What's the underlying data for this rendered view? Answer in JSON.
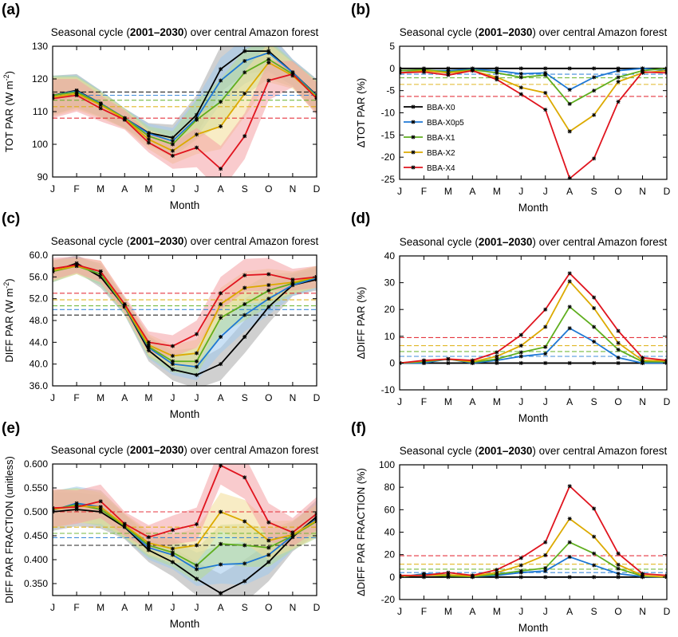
{
  "legend_labels": [
    "BBA-X0",
    "BBA-X0p5",
    "BBA-X1",
    "BBA-X2",
    "BBA-X4"
  ],
  "colors": {
    "BBA-X0": "#000000",
    "BBA-X0p5": "#1f78d4",
    "BBA-X1": "#5fae1e",
    "BBA-X2": "#dcaa00",
    "BBA-X4": "#e0141e"
  },
  "band_colors": {
    "BBA-X0": "#aaaaaa",
    "BBA-X0p5": "#9ec9ec",
    "BBA-X1": "#b6dc96",
    "BBA-X2": "#f3dd96",
    "BBA-X4": "#f4a0a4"
  },
  "chart_data": [
    {
      "id": "a",
      "panel_label": "(a)",
      "type": "line",
      "title_pre": "Seasonal cycle (",
      "title_bold": "2001–2030",
      "title_post": ") over central Amazon forest",
      "xlabel": "Month",
      "ylabel": "TOT PAR (W m^-2)",
      "categories": [
        "J",
        "F",
        "M",
        "A",
        "M",
        "J",
        "J",
        "A",
        "S",
        "O",
        "N",
        "D"
      ],
      "ylim": [
        90,
        130
      ],
      "yticks": [
        "90",
        "100",
        "110",
        "120",
        "130"
      ],
      "series": [
        {
          "name": "BBA-X0",
          "values": [
            115,
            116.5,
            112.5,
            108,
            103.5,
            102,
            109,
            123,
            128.5,
            128.5,
            122,
            115
          ]
        },
        {
          "name": "BBA-X0p5",
          "values": [
            115,
            116.3,
            112.5,
            108,
            103.3,
            101,
            108,
            119.5,
            125.5,
            128,
            122,
            114.8
          ]
        },
        {
          "name": "BBA-X1",
          "values": [
            115,
            116,
            112.3,
            108,
            102.5,
            100,
            107.5,
            113,
            122,
            126,
            121.5,
            114.6
          ]
        },
        {
          "name": "BBA-X2",
          "values": [
            114.5,
            115.5,
            112,
            107.8,
            101.5,
            98,
            103,
            105.5,
            115.5,
            125,
            121,
            114.4
          ]
        },
        {
          "name": "BBA-X4",
          "values": [
            114,
            115,
            111,
            107.5,
            100.5,
            96.5,
            99,
            92.5,
            102.5,
            119.5,
            121.5,
            114
          ]
        }
      ],
      "spread": [
        6,
        5,
        4,
        3,
        3,
        4,
        6,
        7,
        7,
        6,
        4,
        5
      ],
      "hlines": [
        {
          "series": "BBA-X0",
          "value": 116
        },
        {
          "series": "BBA-X0p5",
          "value": 115
        },
        {
          "series": "BBA-X1",
          "value": 113.5
        },
        {
          "series": "BBA-X2",
          "value": 111.5
        },
        {
          "series": "BBA-X4",
          "value": 108
        }
      ]
    },
    {
      "id": "b",
      "panel_label": "(b)",
      "type": "line",
      "title_pre": "Seasonal cycle (",
      "title_bold": "2001–2030",
      "title_post": ") over central Amazon forest",
      "xlabel": "Month",
      "ylabel": "ΔTOT PAR (%)",
      "categories": [
        "J",
        "F",
        "M",
        "A",
        "M",
        "J",
        "J",
        "A",
        "S",
        "O",
        "N",
        "D"
      ],
      "ylim": [
        -25,
        5
      ],
      "yticks": [
        "-25",
        "-20",
        "-15",
        "-10",
        "-5",
        "0",
        "5"
      ],
      "series": [
        {
          "name": "BBA-X0",
          "values": [
            0,
            0,
            0,
            0,
            0,
            0,
            0,
            0,
            0,
            0,
            0,
            0
          ]
        },
        {
          "name": "BBA-X0p5",
          "values": [
            -0.5,
            -0.5,
            -0.5,
            -0.2,
            -0.5,
            -1.2,
            -1,
            -4.8,
            -2,
            -0.5,
            0,
            -0.5
          ]
        },
        {
          "name": "BBA-X1",
          "values": [
            -0.5,
            -0.3,
            -0.8,
            -0.3,
            -1,
            -2,
            -1.5,
            -8,
            -5,
            -2,
            -0.5,
            0
          ]
        },
        {
          "name": "BBA-X2",
          "values": [
            -1,
            -0.5,
            -1,
            -0.5,
            -2,
            -4.3,
            -5.5,
            -14.2,
            -10.5,
            -3,
            -1,
            -0.5
          ]
        },
        {
          "name": "BBA-X4",
          "values": [
            -1,
            -0.8,
            -1.5,
            -0.5,
            -2.5,
            -5.8,
            -9.3,
            -24.8,
            -20.3,
            -7.5,
            -0.8,
            -1
          ]
        }
      ],
      "hlines": [
        {
          "series": "BBA-X0p5",
          "value": -1.3
        },
        {
          "series": "BBA-X1",
          "value": -2.1
        },
        {
          "series": "BBA-X2",
          "value": -3.6
        },
        {
          "series": "BBA-X4",
          "value": -6.3
        }
      ],
      "legend_position": "center-left"
    },
    {
      "id": "c",
      "panel_label": "(c)",
      "type": "line",
      "title_pre": "Seasonal cycle (",
      "title_bold": "2001–2030",
      "title_post": ") over central Amazon forest",
      "xlabel": "Month",
      "ylabel": "DIFF PAR (W m^-2)",
      "categories": [
        "J",
        "F",
        "M",
        "A",
        "M",
        "J",
        "J",
        "A",
        "S",
        "O",
        "N",
        "D"
      ],
      "ylim": [
        36,
        60
      ],
      "yticks": [
        "36.0",
        "40.0",
        "44.0",
        "48.0",
        "52.0",
        "56.0",
        "60.0"
      ],
      "series": [
        {
          "name": "BBA-X0",
          "values": [
            57,
            58.5,
            56,
            50.5,
            42.5,
            39,
            38,
            40,
            45,
            50.5,
            54.5,
            55.5
          ]
        },
        {
          "name": "BBA-X0p5",
          "values": [
            57,
            58.2,
            56.5,
            50.5,
            43,
            40,
            39.5,
            45,
            49,
            52,
            54.5,
            55.8
          ]
        },
        {
          "name": "BBA-X1",
          "values": [
            57,
            58,
            56.5,
            50.6,
            43.2,
            40.5,
            40.5,
            48.5,
            51,
            53.5,
            54.8,
            56
          ]
        },
        {
          "name": "BBA-X2",
          "values": [
            57.2,
            58,
            57,
            50.7,
            43.5,
            41.5,
            42,
            51,
            54,
            54.5,
            55,
            56
          ]
        },
        {
          "name": "BBA-X4",
          "values": [
            57.5,
            58.2,
            57,
            51,
            44,
            43.3,
            45.5,
            53,
            56.3,
            56.5,
            55.5,
            56
          ]
        }
      ],
      "spread": [
        2,
        1.5,
        2,
        1.5,
        2,
        2,
        2.5,
        3,
        3,
        3,
        2,
        2
      ],
      "hlines": [
        {
          "series": "BBA-X0",
          "value": 49
        },
        {
          "series": "BBA-X0p5",
          "value": 50
        },
        {
          "series": "BBA-X1",
          "value": 50.7
        },
        {
          "series": "BBA-X2",
          "value": 51.8
        },
        {
          "series": "BBA-X4",
          "value": 53
        }
      ]
    },
    {
      "id": "d",
      "panel_label": "(d)",
      "type": "line",
      "title_pre": "Seasonal cycle (",
      "title_bold": "2001–2030",
      "title_post": ") over central Amazon forest",
      "xlabel": "Month",
      "ylabel": "ΔDIFF PAR (%)",
      "categories": [
        "J",
        "F",
        "M",
        "A",
        "M",
        "J",
        "J",
        "A",
        "S",
        "O",
        "N",
        "D"
      ],
      "ylim": [
        -10,
        40
      ],
      "yticks": [
        "-10",
        "0",
        "10",
        "20",
        "30",
        "40"
      ],
      "series": [
        {
          "name": "BBA-X0",
          "values": [
            0,
            0,
            0,
            0,
            0,
            0,
            0,
            0,
            0,
            0,
            0,
            0
          ]
        },
        {
          "name": "BBA-X0p5",
          "values": [
            0,
            0,
            1.5,
            0,
            1,
            2.5,
            3.5,
            13,
            8,
            2,
            0,
            0
          ]
        },
        {
          "name": "BBA-X1",
          "values": [
            0,
            0.5,
            1.5,
            0.3,
            1.5,
            4,
            6,
            21,
            13.5,
            5,
            0.5,
            0.5
          ]
        },
        {
          "name": "BBA-X2",
          "values": [
            0,
            0.8,
            1.5,
            0.5,
            2.5,
            6.5,
            13.5,
            30.5,
            20.5,
            7.5,
            1,
            0.8
          ]
        },
        {
          "name": "BBA-X4",
          "values": [
            0,
            1,
            1.5,
            1,
            4,
            10.5,
            20,
            33.5,
            24.5,
            12,
            2,
            1
          ]
        }
      ],
      "hlines": [
        {
          "series": "BBA-X0p5",
          "value": 2.5
        },
        {
          "series": "BBA-X1",
          "value": 4.3
        },
        {
          "series": "BBA-X2",
          "value": 6.5
        },
        {
          "series": "BBA-X4",
          "value": 9.5
        }
      ]
    },
    {
      "id": "e",
      "panel_label": "(e)",
      "type": "line",
      "title_pre": "Seasonal cycle (",
      "title_bold": "2001–2030",
      "title_post": ") over central Amazon forest",
      "xlabel": "Month",
      "ylabel": "DIFF PAR FRACTION (unitless)",
      "categories": [
        "J",
        "F",
        "M",
        "A",
        "M",
        "J",
        "J",
        "A",
        "S",
        "O",
        "N",
        "D"
      ],
      "ylim": [
        0.325,
        0.6
      ],
      "yticks": [
        "0.350",
        "0.400",
        "0.450",
        "0.500",
        "0.550",
        "0.600"
      ],
      "series": [
        {
          "name": "BBA-X0",
          "values": [
            0.5,
            0.505,
            0.5,
            0.468,
            0.42,
            0.395,
            0.36,
            0.33,
            0.355,
            0.395,
            0.447,
            0.49
          ]
        },
        {
          "name": "BBA-X0p5",
          "values": [
            0.503,
            0.518,
            0.51,
            0.47,
            0.425,
            0.41,
            0.38,
            0.39,
            0.392,
            0.41,
            0.45,
            0.485
          ]
        },
        {
          "name": "BBA-X1",
          "values": [
            0.505,
            0.515,
            0.505,
            0.47,
            0.43,
            0.415,
            0.388,
            0.433,
            0.43,
            0.425,
            0.45,
            0.48
          ]
        },
        {
          "name": "BBA-X2",
          "values": [
            0.505,
            0.512,
            0.51,
            0.472,
            0.435,
            0.423,
            0.43,
            0.5,
            0.48,
            0.44,
            0.452,
            0.482
          ]
        },
        {
          "name": "BBA-X4",
          "values": [
            0.508,
            0.51,
            0.522,
            0.475,
            0.447,
            0.462,
            0.474,
            0.597,
            0.572,
            0.478,
            0.457,
            0.496
          ]
        }
      ],
      "spread": [
        0.04,
        0.035,
        0.035,
        0.025,
        0.025,
        0.03,
        0.035,
        0.04,
        0.045,
        0.04,
        0.03,
        0.035
      ],
      "hlines": [
        {
          "series": "BBA-X0",
          "value": 0.43
        },
        {
          "series": "BBA-X0p5",
          "value": 0.446
        },
        {
          "series": "BBA-X1",
          "value": 0.455
        },
        {
          "series": "BBA-X2",
          "value": 0.468
        },
        {
          "series": "BBA-X4",
          "value": 0.5
        }
      ]
    },
    {
      "id": "f",
      "panel_label": "(f)",
      "type": "line",
      "title_pre": "Seasonal cycle (",
      "title_bold": "2001–2030",
      "title_post": ") over central Amazon forest",
      "xlabel": "Month",
      "ylabel": "ΔDIFF PAR FRACTION (%)",
      "categories": [
        "J",
        "F",
        "M",
        "A",
        "M",
        "J",
        "J",
        "A",
        "S",
        "O",
        "N",
        "D"
      ],
      "ylim": [
        -20,
        100
      ],
      "yticks": [
        "-20",
        "0",
        "20",
        "40",
        "60",
        "80",
        "100"
      ],
      "series": [
        {
          "name": "BBA-X0",
          "values": [
            0,
            0,
            0,
            0,
            0,
            0,
            0,
            0,
            0,
            0,
            0,
            0
          ]
        },
        {
          "name": "BBA-X0p5",
          "values": [
            0,
            3,
            2,
            0.5,
            1.5,
            4,
            5.5,
            18,
            10.5,
            3,
            0.5,
            0
          ]
        },
        {
          "name": "BBA-X1",
          "values": [
            0.5,
            2,
            1,
            0.5,
            2.5,
            5.5,
            8,
            31,
            21,
            7.5,
            1,
            0
          ]
        },
        {
          "name": "BBA-X2",
          "values": [
            1,
            1.5,
            2,
            1,
            4,
            10.5,
            19.5,
            52,
            36,
            11,
            1.5,
            0
          ]
        },
        {
          "name": "BBA-X4",
          "values": [
            1.5,
            1.5,
            4,
            1.5,
            6.5,
            17,
            31,
            81,
            61,
            21,
            3,
            1.5
          ]
        }
      ],
      "hlines": [
        {
          "series": "BBA-X0p5",
          "value": 4
        },
        {
          "series": "BBA-X1",
          "value": 7
        },
        {
          "series": "BBA-X2",
          "value": 11.5
        },
        {
          "series": "BBA-X4",
          "value": 19
        }
      ]
    }
  ]
}
